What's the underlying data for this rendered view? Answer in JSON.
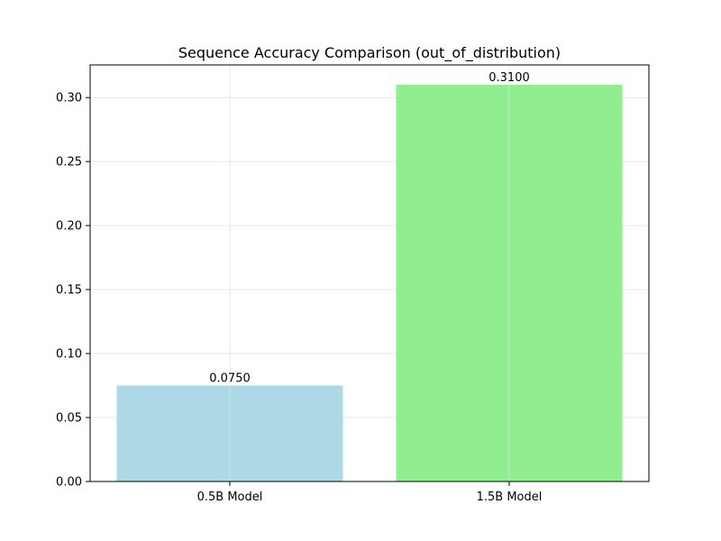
{
  "chart_data": {
    "type": "bar",
    "title": "Sequence Accuracy Comparison (out_of_distribution)",
    "xlabel": "",
    "ylabel": "",
    "categories": [
      "0.5B Model",
      "1.5B Model"
    ],
    "values": [
      0.075,
      0.31
    ],
    "data_labels": [
      "0.0750",
      "0.3100"
    ],
    "colors": [
      "#add8e6",
      "#90ee90"
    ],
    "ylim": [
      0,
      0.3255
    ],
    "yticks": [
      0.0,
      0.05,
      0.1,
      0.15,
      0.2,
      0.25,
      0.3
    ],
    "ytick_labels": [
      "0.00",
      "0.05",
      "0.10",
      "0.15",
      "0.20",
      "0.25",
      "0.30"
    ],
    "grid": true
  }
}
